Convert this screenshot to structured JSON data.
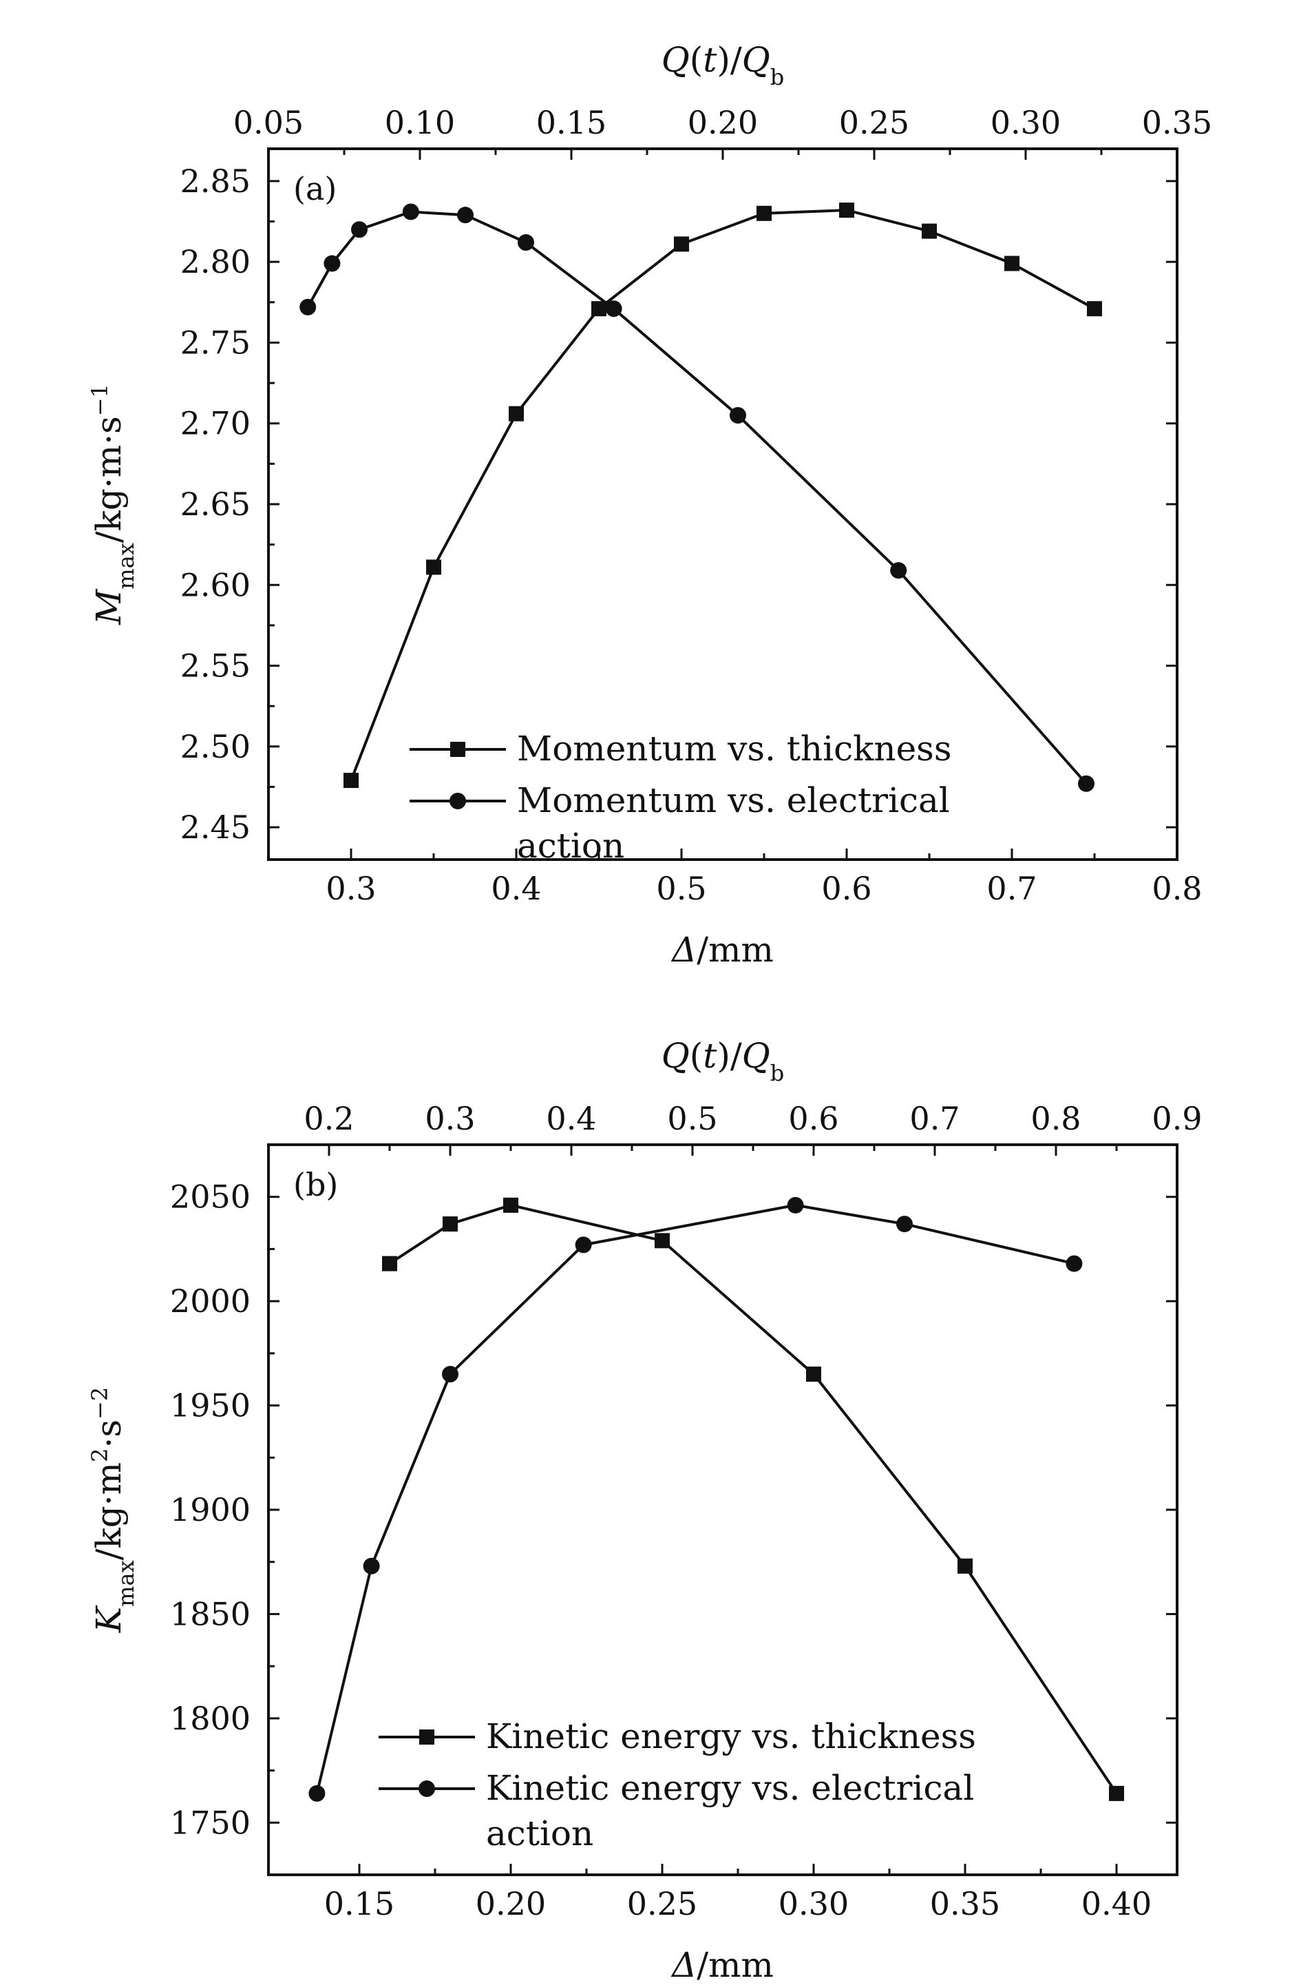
{
  "chart_data": [
    {
      "type": "line",
      "panel_label": "(a)",
      "xlabel": "Δ/mm",
      "ylabel": "M_max/kg·m·s⁻¹",
      "x2label": "Q(t)/Q_b",
      "xlim": [
        0.25,
        0.8
      ],
      "ylim": [
        2.43,
        2.87
      ],
      "x2lim": [
        0.05,
        0.35
      ],
      "xticks": [
        "0.3",
        "0.4",
        "0.5",
        "0.6",
        "0.7",
        "0.8"
      ],
      "yticks": [
        "2.45",
        "2.50",
        "2.55",
        "2.60",
        "2.65",
        "2.70",
        "2.75",
        "2.80",
        "2.85"
      ],
      "x2ticks": [
        "0.05",
        "0.10",
        "0.15",
        "0.20",
        "0.25",
        "0.30",
        "0.35"
      ],
      "legend_position": "lower-center",
      "series": [
        {
          "name": "Momentum vs. thickness",
          "marker": "square",
          "axis": "bottom",
          "x": [
            0.3,
            0.35,
            0.4,
            0.45,
            0.5,
            0.55,
            0.6,
            0.65,
            0.7,
            0.75
          ],
          "y": [
            2.479,
            2.611,
            2.706,
            2.771,
            2.811,
            2.83,
            2.832,
            2.819,
            2.799,
            2.771
          ]
        },
        {
          "name": "Momentum vs. electrical action",
          "marker": "circle",
          "axis": "top",
          "x": [
            0.063,
            0.071,
            0.08,
            0.097,
            0.115,
            0.135,
            0.164,
            0.205,
            0.258,
            0.32
          ],
          "y": [
            2.772,
            2.799,
            2.82,
            2.831,
            2.829,
            2.812,
            2.771,
            2.705,
            2.609,
            2.477
          ]
        }
      ]
    },
    {
      "type": "line",
      "panel_label": "(b)",
      "xlabel": "Δ/mm",
      "ylabel": "K_max/kg·m²·s⁻²",
      "x2label": "Q(t)/Q_b",
      "xlim": [
        0.12,
        0.42
      ],
      "ylim": [
        1725,
        2075
      ],
      "x2lim": [
        0.15,
        0.9
      ],
      "xticks": [
        "0.15",
        "0.20",
        "0.25",
        "0.30",
        "0.35",
        "0.40"
      ],
      "yticks": [
        "1750",
        "1800",
        "1850",
        "1900",
        "1950",
        "2000",
        "2050"
      ],
      "x2ticks": [
        "0.2",
        "0.3",
        "0.4",
        "0.5",
        "0.6",
        "0.7",
        "0.8",
        "0.9"
      ],
      "legend_position": "lower-center",
      "series": [
        {
          "name": "Kinetic energy vs. thickness",
          "marker": "square",
          "axis": "bottom",
          "x": [
            0.16,
            0.18,
            0.2,
            0.25,
            0.3,
            0.35,
            0.4
          ],
          "y": [
            2018,
            2037,
            2046,
            2029,
            1965,
            1873,
            1764
          ]
        },
        {
          "name": "Kinetic energy vs. electrical action",
          "marker": "circle",
          "axis": "top",
          "x": [
            0.19,
            0.235,
            0.3,
            0.41,
            0.585,
            0.675,
            0.815
          ],
          "y": [
            1764,
            1873,
            1965,
            2027,
            2046,
            2037,
            2018
          ]
        }
      ]
    }
  ]
}
